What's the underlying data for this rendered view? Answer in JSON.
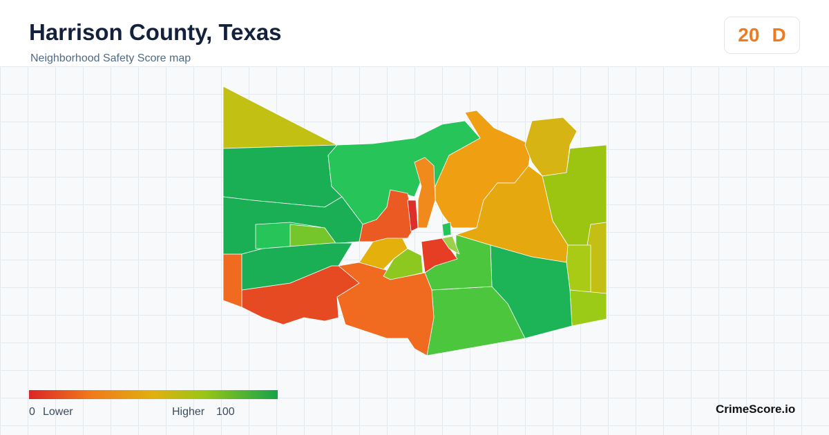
{
  "header": {
    "title": "Harrison County, Texas",
    "subtitle": "Neighborhood Safety Score map"
  },
  "score": {
    "value": 20,
    "grade": "D"
  },
  "legend": {
    "min": 0,
    "min_label": "Lower",
    "max_label": "Higher",
    "max": 100
  },
  "brand": "CrimeScore.io"
}
